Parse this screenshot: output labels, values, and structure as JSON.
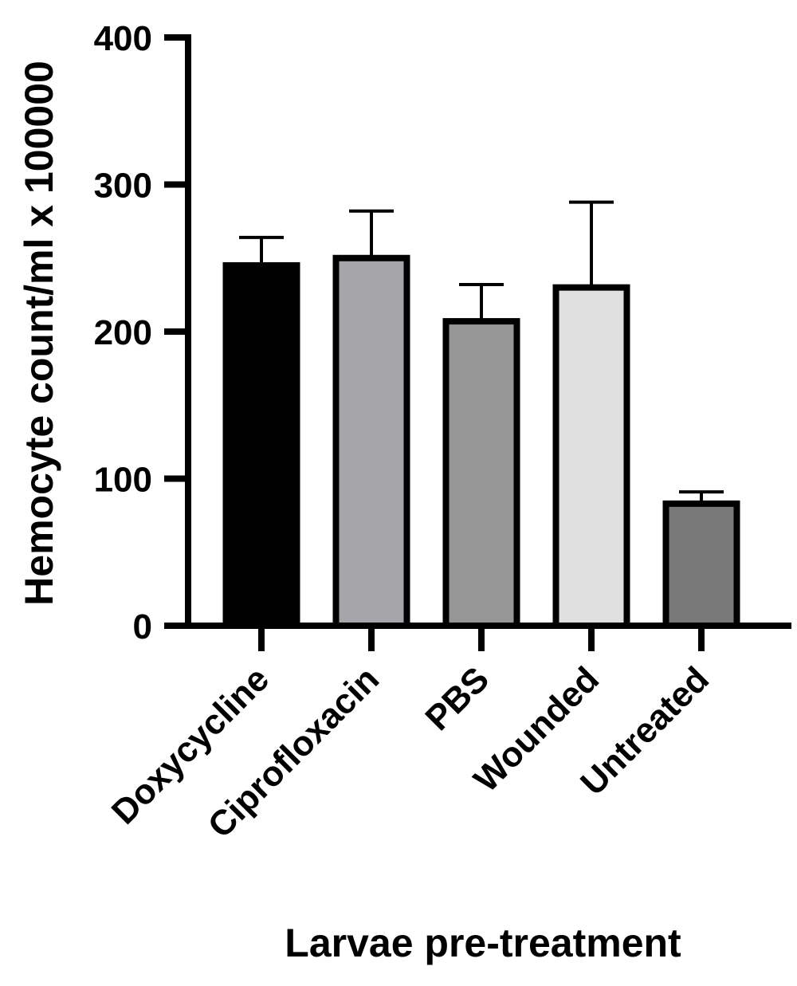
{
  "chart_data": {
    "type": "bar",
    "title": "",
    "xlabel": "Larvae pre-treatment",
    "ylabel": "Hemocyte count/ml x 100000",
    "ylim": [
      0,
      400
    ],
    "yticks": [
      0,
      100,
      200,
      300,
      400
    ],
    "ytick_labels": [
      "0",
      "100",
      "200",
      "300",
      "400"
    ],
    "categories": [
      "Doxycycline",
      "Ciprofloxacin",
      "PBS",
      "Wounded",
      "Untreated"
    ],
    "values": [
      245,
      250,
      207,
      230,
      83
    ],
    "error_upper": [
      264,
      282,
      232,
      288,
      91
    ],
    "colors": [
      "#000000",
      "#a6a5aa",
      "#969696",
      "#e0e0e0",
      "#787878"
    ],
    "grid": false,
    "legend": "none"
  }
}
